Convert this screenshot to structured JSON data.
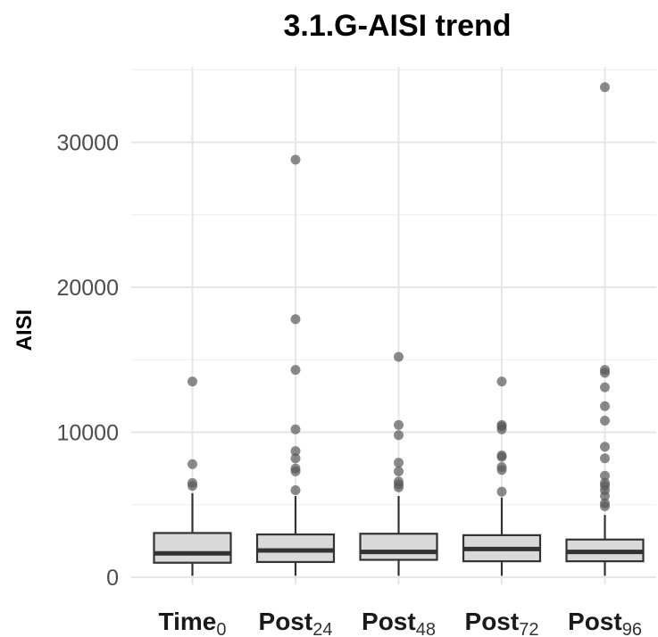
{
  "chart_data": {
    "type": "box",
    "title": "3.1.G-AISI trend",
    "xlabel": "",
    "ylabel": "AISI",
    "ylim": [
      -800,
      35500
    ],
    "yticks": [
      0,
      10000,
      20000,
      30000
    ],
    "ytick_labels": [
      "0",
      "10000",
      "20000",
      "30000"
    ],
    "grid": true,
    "legend": "none",
    "colors": {
      "box_fill": "#d9d9d9",
      "box_stroke": "#333333",
      "outlier": "#595959",
      "grid": "#e6e6e6"
    },
    "categories": [
      {
        "main": "Time",
        "sub": "0"
      },
      {
        "main": "Post",
        "sub": "24"
      },
      {
        "main": "Post",
        "sub": "48"
      },
      {
        "main": "Post",
        "sub": "72"
      },
      {
        "main": "Post",
        "sub": "96"
      }
    ],
    "boxes": [
      {
        "whisker_low": 100,
        "q1": 1000,
        "median": 1650,
        "q3": 3050,
        "whisker_high": 5800,
        "outliers": [
          6300,
          6500,
          7800,
          13500
        ]
      },
      {
        "whisker_low": 100,
        "q1": 1050,
        "median": 1850,
        "q3": 2950,
        "whisker_high": 5600,
        "outliers": [
          6000,
          7300,
          7500,
          8200,
          8700,
          10200,
          14300,
          17800,
          28800
        ]
      },
      {
        "whisker_low": 100,
        "q1": 1200,
        "median": 1750,
        "q3": 3000,
        "whisker_high": 5600,
        "outliers": [
          6200,
          6400,
          6600,
          7300,
          7900,
          9800,
          10500,
          15200
        ]
      },
      {
        "whisker_low": 100,
        "q1": 1100,
        "median": 1950,
        "q3": 2900,
        "whisker_high": 5500,
        "outliers": [
          5900,
          7400,
          7600,
          8300,
          8400,
          10200,
          10400,
          10500,
          13500
        ]
      },
      {
        "whisker_low": 100,
        "q1": 1100,
        "median": 1750,
        "q3": 2600,
        "whisker_high": 4300,
        "outliers": [
          4900,
          5100,
          5600,
          6000,
          6300,
          6500,
          7000,
          8200,
          9000,
          10800,
          11800,
          13100,
          14100,
          14300,
          33800
        ]
      }
    ]
  }
}
